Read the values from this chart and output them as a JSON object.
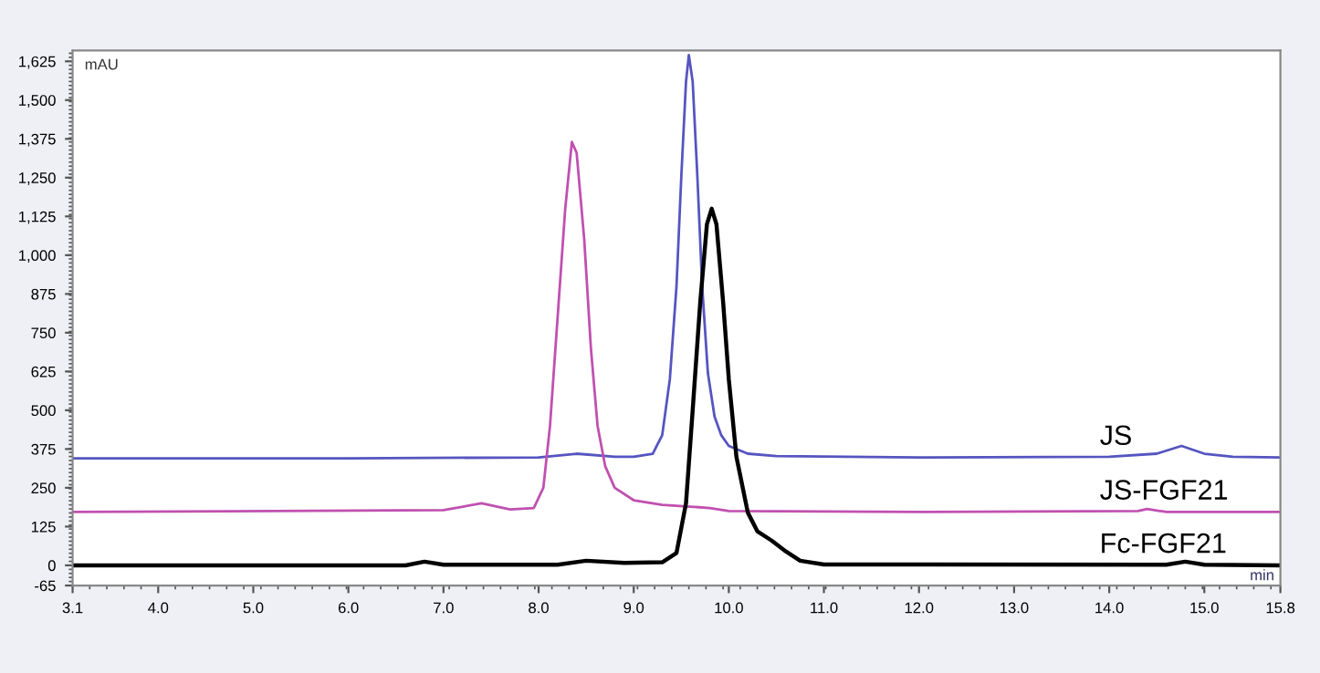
{
  "chart_data": {
    "type": "line",
    "xlabel": "min",
    "ylabel": "mAU",
    "xlim": [
      3.1,
      15.8
    ],
    "ylim": [
      -65,
      1660
    ],
    "xticks": [
      {
        "value": 3.1,
        "label": "3.1"
      },
      {
        "value": 4,
        "label": "4.0"
      },
      {
        "value": 5,
        "label": "5.0"
      },
      {
        "value": 6,
        "label": "6.0"
      },
      {
        "value": 7,
        "label": "7.0"
      },
      {
        "value": 8,
        "label": "8.0"
      },
      {
        "value": 9,
        "label": "9.0"
      },
      {
        "value": 10,
        "label": "10.0"
      },
      {
        "value": 11,
        "label": "11.0"
      },
      {
        "value": 12,
        "label": "12.0"
      },
      {
        "value": 13,
        "label": "13.0"
      },
      {
        "value": 14,
        "label": "14.0"
      },
      {
        "value": 15,
        "label": "15.0"
      },
      {
        "value": 15.8,
        "label": "15.8"
      }
    ],
    "yticks": [
      -65,
      0,
      125,
      250,
      375,
      500,
      625,
      750,
      875,
      {
        "value": 1000,
        "label": "1,000"
      },
      {
        "value": 1125,
        "label": "1,125"
      },
      {
        "value": 1250,
        "label": "1,250"
      },
      {
        "value": 1375,
        "label": "1,375"
      },
      {
        "value": 1500,
        "label": "1,500"
      },
      {
        "value": 1625,
        "label": "1,625"
      }
    ],
    "grid": false,
    "legend": false,
    "marker": "none",
    "line_style": "solid",
    "series": [
      {
        "name": "JS",
        "color": "#5555c0",
        "x": [
          3.1,
          6.0,
          8.0,
          8.4,
          8.8,
          9.0,
          9.2,
          9.3,
          9.38,
          9.45,
          9.5,
          9.55,
          9.58,
          9.62,
          9.67,
          9.72,
          9.78,
          9.85,
          9.92,
          10.0,
          10.2,
          10.5,
          12.0,
          14.0,
          14.5,
          14.76,
          15.0,
          15.3,
          15.8
        ],
        "values": [
          345,
          345,
          348,
          360,
          350,
          350,
          360,
          420,
          600,
          900,
          1250,
          1560,
          1645,
          1560,
          1250,
          900,
          620,
          480,
          420,
          385,
          360,
          352,
          348,
          350,
          360,
          385,
          360,
          350,
          348
        ]
      },
      {
        "name": "JS-FGF21",
        "color": "#c050b0",
        "x": [
          3.1,
          7.0,
          7.4,
          7.7,
          7.95,
          8.05,
          8.12,
          8.2,
          8.28,
          8.35,
          8.4,
          8.48,
          8.55,
          8.62,
          8.7,
          8.8,
          9.0,
          9.3,
          9.8,
          10.0,
          12.0,
          14.3,
          14.4,
          14.6,
          15.8
        ],
        "values": [
          172,
          178,
          200,
          180,
          185,
          250,
          450,
          800,
          1150,
          1365,
          1330,
          1050,
          700,
          450,
          320,
          250,
          210,
          195,
          185,
          175,
          172,
          175,
          182,
          172,
          172
        ]
      },
      {
        "name": "Fc-FGF21",
        "color": "#000000",
        "x": [
          3.1,
          6.6,
          6.8,
          7.0,
          8.2,
          8.5,
          8.9,
          9.3,
          9.45,
          9.55,
          9.62,
          9.7,
          9.77,
          9.82,
          9.87,
          9.94,
          10.0,
          10.08,
          10.2,
          10.3,
          10.45,
          10.6,
          10.75,
          11.0,
          14.6,
          14.8,
          15.0,
          15.8
        ],
        "values": [
          0,
          0,
          12,
          2,
          2,
          15,
          8,
          10,
          40,
          200,
          500,
          850,
          1100,
          1150,
          1100,
          850,
          600,
          350,
          170,
          110,
          80,
          45,
          15,
          3,
          2,
          12,
          2,
          0
        ]
      }
    ]
  }
}
